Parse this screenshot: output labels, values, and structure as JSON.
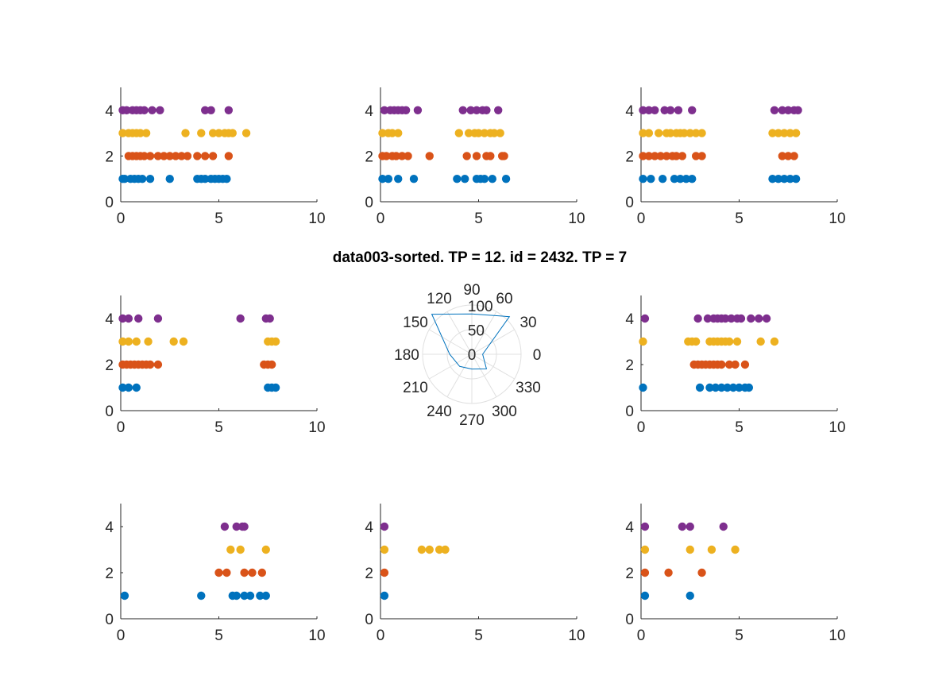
{
  "figure": {
    "title": "data003-sorted. TP = 12. id = 2432. TP = 7"
  },
  "colors": {
    "series": [
      "#0072BD",
      "#D95319",
      "#EDB120",
      "#7E2F8E"
    ],
    "axis": "#262626",
    "polar_grid": "#e0e0e0",
    "polar_line": "#0072BD"
  },
  "chart_data": [
    {
      "panel": 1,
      "type": "scatter",
      "xlim": [
        0,
        10
      ],
      "ylim": [
        0,
        5
      ],
      "xticks": [
        0,
        5,
        10
      ],
      "yticks": [
        0,
        2,
        4
      ],
      "series": [
        {
          "y": 1,
          "x": [
            0.1,
            0.2,
            0.5,
            0.7,
            0.9,
            1.1,
            1.5,
            2.5,
            3.9,
            4.1,
            4.3,
            4.6,
            4.8,
            5.0,
            5.2,
            5.4
          ]
        },
        {
          "y": 2,
          "x": [
            0.4,
            0.6,
            0.8,
            1.0,
            1.2,
            1.5,
            1.9,
            2.2,
            2.5,
            2.8,
            3.1,
            3.4,
            3.9,
            4.3,
            4.7,
            5.5
          ]
        },
        {
          "y": 3,
          "x": [
            0.1,
            0.4,
            0.6,
            0.8,
            1.0,
            1.3,
            3.3,
            4.1,
            4.7,
            5.0,
            5.3,
            5.5,
            5.7,
            6.4
          ]
        },
        {
          "y": 4,
          "x": [
            0.1,
            0.3,
            0.6,
            0.8,
            1.0,
            1.2,
            1.6,
            2.0,
            4.3,
            4.6,
            5.5
          ]
        }
      ]
    },
    {
      "panel": 2,
      "type": "scatter",
      "xlim": [
        0,
        10
      ],
      "ylim": [
        0,
        5
      ],
      "xticks": [
        0,
        5,
        10
      ],
      "yticks": [
        0,
        2,
        4
      ],
      "series": [
        {
          "y": 1,
          "x": [
            0.1,
            0.4,
            0.9,
            1.7,
            3.9,
            4.3,
            4.9,
            5.1,
            5.3,
            5.7,
            6.4
          ]
        },
        {
          "y": 2,
          "x": [
            0.1,
            0.3,
            0.6,
            0.8,
            1.1,
            1.4,
            2.5,
            4.4,
            4.9,
            5.4,
            5.6,
            6.2,
            6.3
          ]
        },
        {
          "y": 3,
          "x": [
            0.1,
            0.4,
            0.6,
            0.9,
            4.0,
            4.5,
            4.8,
            5.0,
            5.3,
            5.6,
            5.8,
            6.1
          ]
        },
        {
          "y": 4,
          "x": [
            0.2,
            0.5,
            0.7,
            0.9,
            1.1,
            1.3,
            1.9,
            4.2,
            4.6,
            4.9,
            5.2,
            5.4,
            6.0
          ]
        }
      ]
    },
    {
      "panel": 3,
      "type": "scatter",
      "xlim": [
        0,
        10
      ],
      "ylim": [
        0,
        5
      ],
      "xticks": [
        0,
        5,
        10
      ],
      "yticks": [
        0,
        2,
        4
      ],
      "series": [
        {
          "y": 1,
          "x": [
            0.1,
            0.5,
            1.1,
            1.7,
            2.0,
            2.3,
            2.6,
            6.7,
            7.0,
            7.3,
            7.6,
            7.9
          ]
        },
        {
          "y": 2,
          "x": [
            0.1,
            0.4,
            0.7,
            1.0,
            1.3,
            1.6,
            1.8,
            2.1,
            2.8,
            3.1,
            7.2,
            7.5,
            7.8
          ]
        },
        {
          "y": 3,
          "x": [
            0.1,
            0.4,
            0.9,
            1.3,
            1.5,
            1.8,
            2.0,
            2.2,
            2.5,
            2.8,
            3.1,
            6.7,
            7.0,
            7.3,
            7.6,
            7.9
          ]
        },
        {
          "y": 4,
          "x": [
            0.1,
            0.4,
            0.7,
            1.2,
            1.5,
            1.9,
            2.6,
            6.8,
            7.2,
            7.5,
            7.8,
            8.0
          ]
        }
      ]
    },
    {
      "panel": 4,
      "type": "scatter",
      "xlim": [
        0,
        10
      ],
      "ylim": [
        0,
        5
      ],
      "xticks": [
        0,
        5,
        10
      ],
      "yticks": [
        0,
        2,
        4
      ],
      "series": [
        {
          "y": 1,
          "x": [
            0.1,
            0.4,
            0.8,
            7.5,
            7.7,
            7.9
          ]
        },
        {
          "y": 2,
          "x": [
            0.1,
            0.3,
            0.5,
            0.7,
            0.9,
            1.1,
            1.3,
            1.5,
            1.9,
            7.3,
            7.5,
            7.7
          ]
        },
        {
          "y": 3,
          "x": [
            0.1,
            0.4,
            0.8,
            1.4,
            2.7,
            3.2,
            7.5,
            7.7,
            7.9
          ]
        },
        {
          "y": 4,
          "x": [
            0.1,
            0.4,
            0.9,
            1.9,
            6.1,
            7.4,
            7.6
          ]
        }
      ]
    },
    {
      "panel": 5,
      "type": "polar",
      "angle_ticks": [
        0,
        30,
        60,
        90,
        120,
        150,
        180,
        210,
        240,
        270,
        300,
        330
      ],
      "angle_tick_labels": [
        "0",
        "30",
        "60",
        "90",
        "120",
        "150",
        "180",
        "210",
        "240",
        "270",
        "300",
        "330"
      ],
      "r_ticks": [
        0,
        50,
        100
      ],
      "r_tick_labels": [
        "0",
        "50",
        "100"
      ],
      "rlim": [
        0,
        100
      ],
      "series": [
        {
          "theta": [
            0,
            45,
            90,
            135,
            180,
            225,
            270,
            315
          ],
          "r": [
            22,
            108,
            82,
            115,
            45,
            35,
            30,
            42
          ]
        }
      ]
    },
    {
      "panel": 6,
      "type": "scatter",
      "xlim": [
        0,
        10
      ],
      "ylim": [
        0,
        5
      ],
      "xticks": [
        0,
        5,
        10
      ],
      "yticks": [
        0,
        2,
        4
      ],
      "series": [
        {
          "y": 1,
          "x": [
            0.1,
            3.0,
            3.5,
            3.8,
            4.1,
            4.4,
            4.7,
            5.0,
            5.3,
            5.5
          ]
        },
        {
          "y": 2,
          "x": [
            2.7,
            2.9,
            3.1,
            3.3,
            3.5,
            3.7,
            3.9,
            4.1,
            4.5,
            4.8,
            5.3
          ]
        },
        {
          "y": 3,
          "x": [
            0.1,
            2.4,
            2.6,
            2.8,
            3.5,
            3.7,
            3.9,
            4.1,
            4.3,
            4.5,
            4.9,
            6.1,
            6.8
          ]
        },
        {
          "y": 4,
          "x": [
            0.2,
            2.9,
            3.4,
            3.7,
            3.9,
            4.1,
            4.3,
            4.6,
            4.9,
            5.1,
            5.6,
            6.0,
            6.4
          ]
        }
      ]
    },
    {
      "panel": 7,
      "type": "scatter",
      "xlim": [
        0,
        10
      ],
      "ylim": [
        0,
        5
      ],
      "xticks": [
        0,
        5,
        10
      ],
      "yticks": [
        0,
        2,
        4
      ],
      "series": [
        {
          "y": 1,
          "x": [
            0.2,
            4.1,
            5.7,
            5.9,
            6.3,
            6.6,
            7.1,
            7.4
          ]
        },
        {
          "y": 2,
          "x": [
            5.0,
            5.4,
            6.3,
            6.7,
            7.2
          ]
        },
        {
          "y": 3,
          "x": [
            5.6,
            6.1,
            7.4
          ]
        },
        {
          "y": 4,
          "x": [
            5.3,
            5.9,
            6.2,
            6.3
          ]
        }
      ]
    },
    {
      "panel": 8,
      "type": "scatter",
      "xlim": [
        0,
        10
      ],
      "ylim": [
        0,
        5
      ],
      "xticks": [
        0,
        5,
        10
      ],
      "yticks": [
        0,
        2,
        4
      ],
      "series": [
        {
          "y": 1,
          "x": [
            0.2
          ]
        },
        {
          "y": 2,
          "x": [
            0.2
          ]
        },
        {
          "y": 3,
          "x": [
            0.2,
            2.1,
            2.5,
            3.0,
            3.3
          ]
        },
        {
          "y": 4,
          "x": [
            0.2
          ]
        }
      ]
    },
    {
      "panel": 9,
      "type": "scatter",
      "xlim": [
        0,
        10
      ],
      "ylim": [
        0,
        5
      ],
      "xticks": [
        0,
        5,
        10
      ],
      "yticks": [
        0,
        2,
        4
      ],
      "series": [
        {
          "y": 1,
          "x": [
            0.2,
            2.5
          ]
        },
        {
          "y": 2,
          "x": [
            0.2,
            1.4,
            3.1
          ]
        },
        {
          "y": 3,
          "x": [
            0.2,
            2.5,
            3.6,
            4.8
          ]
        },
        {
          "y": 4,
          "x": [
            0.2,
            2.1,
            2.5,
            4.2
          ]
        }
      ]
    }
  ]
}
